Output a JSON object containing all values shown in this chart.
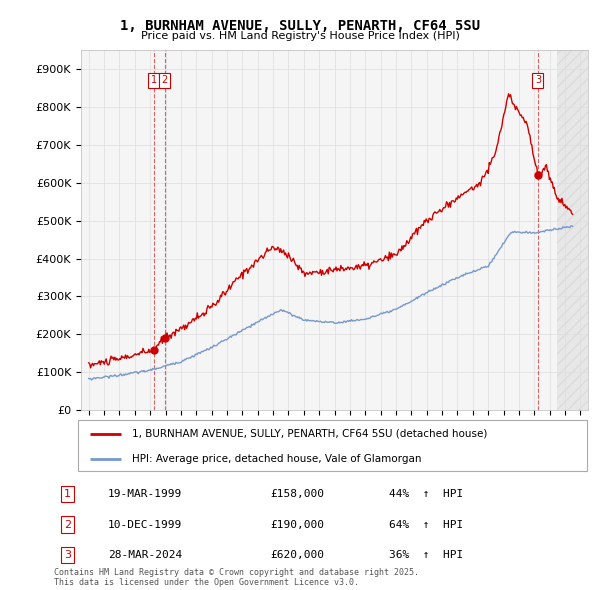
{
  "title": "1, BURNHAM AVENUE, SULLY, PENARTH, CF64 5SU",
  "subtitle": "Price paid vs. HM Land Registry's House Price Index (HPI)",
  "legend_line1": "1, BURNHAM AVENUE, SULLY, PENARTH, CF64 5SU (detached house)",
  "legend_line2": "HPI: Average price, detached house, Vale of Glamorgan",
  "red_color": "#cc0000",
  "blue_color": "#7799cc",
  "bg_color": "#f5f5f5",
  "grid_color": "#dddddd",
  "ylim": [
    0,
    950000
  ],
  "yticks": [
    0,
    100000,
    200000,
    300000,
    400000,
    500000,
    600000,
    700000,
    800000,
    900000
  ],
  "ytick_labels": [
    "£0",
    "£100K",
    "£200K",
    "£300K",
    "£400K",
    "£500K",
    "£600K",
    "£700K",
    "£800K",
    "£900K"
  ],
  "transactions": [
    {
      "label": "1",
      "date": "19-MAR-1999",
      "price": 158000,
      "pct": "44%",
      "year": 1999.22
    },
    {
      "label": "2",
      "date": "10-DEC-1999",
      "price": 190000,
      "pct": "64%",
      "year": 1999.94
    },
    {
      "label": "3",
      "date": "28-MAR-2024",
      "price": 620000,
      "pct": "36%",
      "year": 2024.24
    }
  ],
  "footer": "Contains HM Land Registry data © Crown copyright and database right 2025.\nThis data is licensed under the Open Government Licence v3.0.",
  "xmin": 1994.5,
  "xmax": 2027.5,
  "xticks": [
    1995,
    1996,
    1997,
    1998,
    1999,
    2000,
    2001,
    2002,
    2003,
    2004,
    2005,
    2006,
    2007,
    2008,
    2009,
    2010,
    2011,
    2012,
    2013,
    2014,
    2015,
    2016,
    2017,
    2018,
    2019,
    2020,
    2021,
    2022,
    2023,
    2024,
    2025,
    2026,
    2027
  ],
  "red_anchors_y": [
    1995.0,
    1997.0,
    1999.22,
    1999.94,
    2001,
    2003,
    2005,
    2007,
    2008,
    2009,
    2011,
    2013,
    2015,
    2017,
    2019,
    2020.5,
    2021.5,
    2022.3,
    2022.8,
    2023.5,
    2024.24,
    2024.8,
    2025.5,
    2026.5
  ],
  "red_anchors_v": [
    118000,
    135000,
    158000,
    190000,
    215000,
    270000,
    360000,
    430000,
    410000,
    360000,
    370000,
    380000,
    410000,
    500000,
    560000,
    600000,
    680000,
    830000,
    800000,
    760000,
    620000,
    640000,
    560000,
    520000
  ],
  "blue_anchors_y": [
    1995.0,
    1997.0,
    1999.0,
    2001.0,
    2003.0,
    2005.0,
    2007.5,
    2009.0,
    2011.0,
    2013.0,
    2015.0,
    2017.0,
    2019.0,
    2021.0,
    2022.5,
    2024.0,
    2026.5
  ],
  "blue_anchors_v": [
    82000,
    92000,
    105000,
    128000,
    165000,
    210000,
    265000,
    238000,
    230000,
    240000,
    265000,
    310000,
    350000,
    380000,
    470000,
    468000,
    485000
  ],
  "hatch_start": 2025.5,
  "hatch_end": 2027.5
}
